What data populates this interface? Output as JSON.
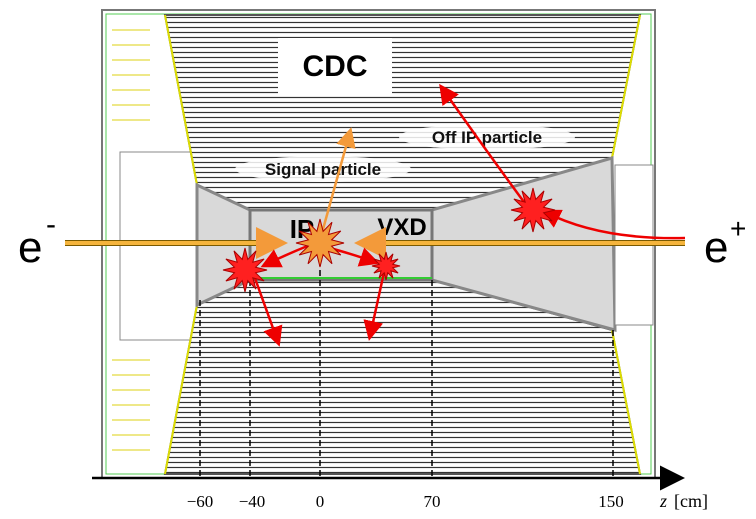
{
  "diagram": {
    "detector_label": "CDC",
    "signal_label": "Signal particle",
    "off_ip_label": "Off IP particle",
    "ip_label": "IP",
    "vxd_label": "VXD",
    "electron": {
      "symbol": "e",
      "charge": "-"
    },
    "positron": {
      "symbol": "e",
      "charge": "+"
    },
    "axis": {
      "ticks": [
        "−60",
        "−40",
        "0",
        "70",
        "150"
      ],
      "variable": "z",
      "unit": "[cm]"
    }
  }
}
